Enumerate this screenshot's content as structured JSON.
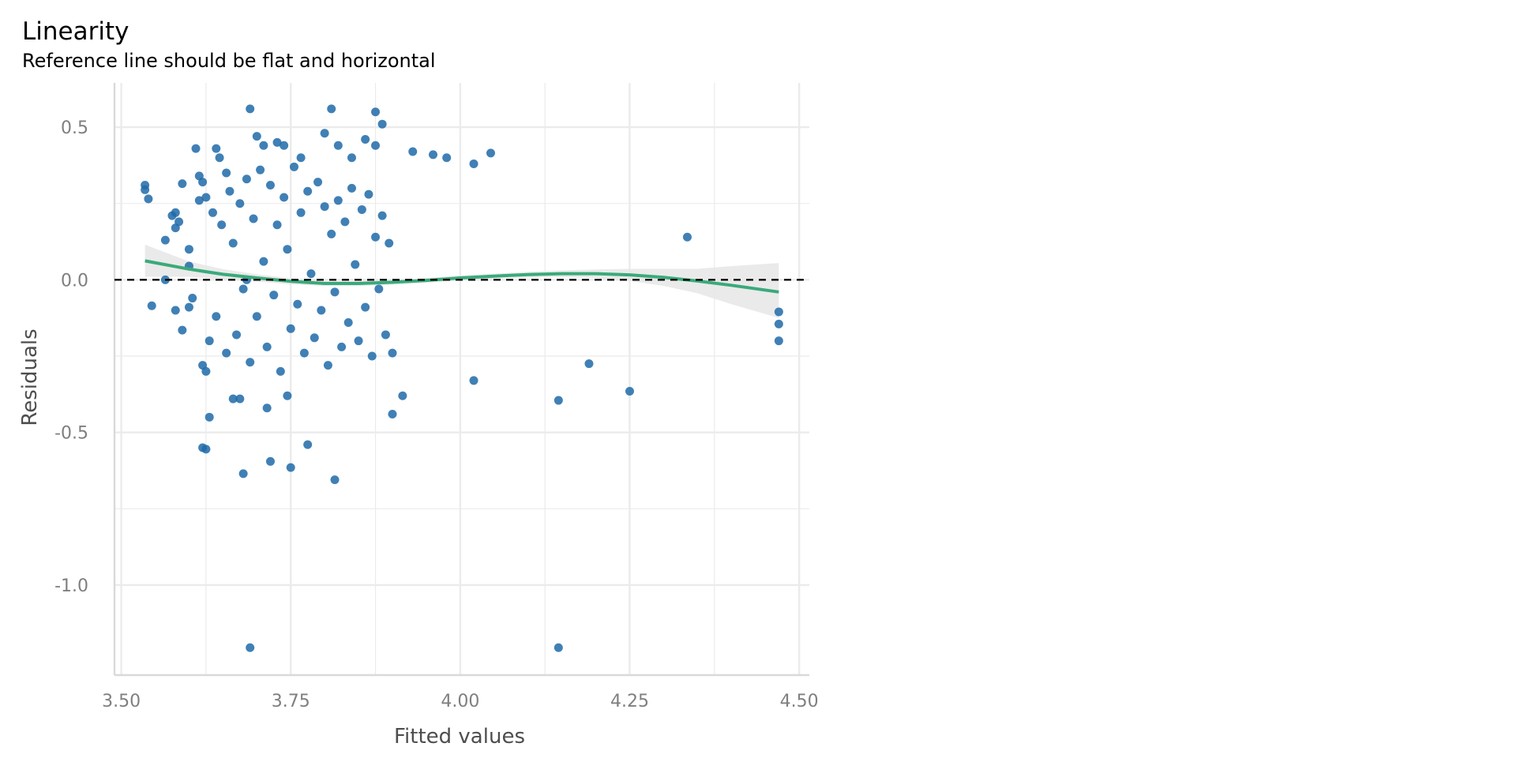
{
  "chart_data": {
    "type": "scatter",
    "title": "Linearity",
    "subtitle": "Reference line should be flat and horizontal",
    "xlabel": "Fitted values",
    "ylabel": "Residuals",
    "xlim": [
      3.49,
      4.515
    ],
    "ylim": [
      -1.295,
      0.645
    ],
    "x_ticks": [
      3.5,
      3.75,
      4.0,
      4.25,
      4.5
    ],
    "x_tick_labels": [
      "3.50",
      "3.75",
      "4.00",
      "4.25",
      "4.50"
    ],
    "y_ticks": [
      -1.0,
      -0.5,
      0.0,
      0.5
    ],
    "y_tick_labels": [
      "-1.0",
      "-0.5",
      "0.0",
      "0.5"
    ],
    "grid": true,
    "reference_line": {
      "y": 0.0,
      "style": "dashed"
    },
    "colors": {
      "points": "#1f6aa8",
      "smooth": "#3aaa7a",
      "band": "#e6e6e6",
      "reference": "#000000",
      "grid": "#ebebeb"
    },
    "series": [
      {
        "type": "scatter",
        "points": [
          [
            3.535,
            0.31
          ],
          [
            3.535,
            0.295
          ],
          [
            3.54,
            0.265
          ],
          [
            3.545,
            -0.085
          ],
          [
            3.565,
            0.13
          ],
          [
            3.565,
            0.0
          ],
          [
            3.575,
            0.21
          ],
          [
            3.58,
            0.22
          ],
          [
            3.58,
            -0.1
          ],
          [
            3.585,
            0.19
          ],
          [
            3.59,
            0.315
          ],
          [
            3.59,
            -0.165
          ],
          [
            3.6,
            0.045
          ],
          [
            3.6,
            -0.09
          ],
          [
            3.61,
            0.43
          ],
          [
            3.615,
            0.34
          ],
          [
            3.62,
            0.32
          ],
          [
            3.62,
            -0.28
          ],
          [
            3.625,
            -0.3
          ],
          [
            3.63,
            -0.45
          ],
          [
            3.62,
            -0.55
          ],
          [
            3.625,
            -0.555
          ],
          [
            3.64,
            0.43
          ],
          [
            3.645,
            0.4
          ],
          [
            3.655,
            0.35
          ],
          [
            3.665,
            -0.39
          ],
          [
            3.675,
            -0.39
          ],
          [
            3.68,
            -0.635
          ],
          [
            3.685,
            1e-09
          ],
          [
            3.69,
            0.56
          ],
          [
            3.7,
            0.47
          ],
          [
            3.71,
            0.44
          ],
          [
            3.715,
            -0.42
          ],
          [
            3.72,
            -0.595
          ],
          [
            3.73,
            0.45
          ],
          [
            3.74,
            0.44
          ],
          [
            3.745,
            -0.38
          ],
          [
            3.75,
            -0.615
          ],
          [
            3.765,
            0.4
          ],
          [
            3.775,
            -0.54
          ],
          [
            3.8,
            0.48
          ],
          [
            3.81,
            0.56
          ],
          [
            3.815,
            -0.655
          ],
          [
            3.82,
            0.44
          ],
          [
            3.84,
            0.4
          ],
          [
            3.86,
            0.46
          ],
          [
            3.875,
            0.55
          ],
          [
            3.885,
            0.51
          ],
          [
            3.875,
            0.44
          ],
          [
            3.9,
            -0.44
          ],
          [
            3.915,
            -0.38
          ],
          [
            3.93,
            0.42
          ],
          [
            3.96,
            0.41
          ],
          [
            3.98,
            0.4
          ],
          [
            4.02,
            0.38
          ],
          [
            4.045,
            0.415
          ],
          [
            4.02,
            -0.33
          ],
          [
            4.145,
            -0.395
          ],
          [
            4.25,
            -0.365
          ],
          [
            4.19,
            -0.275
          ],
          [
            4.335,
            0.14
          ],
          [
            4.47,
            -0.105
          ],
          [
            4.47,
            -0.145
          ],
          [
            4.47,
            -0.2
          ],
          [
            3.69,
            -1.205
          ],
          [
            4.145,
            -1.205
          ],
          [
            3.58,
            0.17
          ],
          [
            3.6,
            0.1
          ],
          [
            3.605,
            -0.06
          ],
          [
            3.615,
            0.26
          ],
          [
            3.625,
            0.27
          ],
          [
            3.63,
            -0.2
          ],
          [
            3.635,
            0.22
          ],
          [
            3.64,
            -0.12
          ],
          [
            3.648,
            0.18
          ],
          [
            3.655,
            -0.24
          ],
          [
            3.66,
            0.29
          ],
          [
            3.665,
            0.12
          ],
          [
            3.67,
            -0.18
          ],
          [
            3.675,
            0.25
          ],
          [
            3.68,
            -0.03
          ],
          [
            3.685,
            0.33
          ],
          [
            3.69,
            -0.27
          ],
          [
            3.695,
            0.2
          ],
          [
            3.7,
            -0.12
          ],
          [
            3.705,
            0.36
          ],
          [
            3.71,
            0.06
          ],
          [
            3.715,
            -0.22
          ],
          [
            3.72,
            0.31
          ],
          [
            3.725,
            -0.05
          ],
          [
            3.73,
            0.18
          ],
          [
            3.735,
            -0.3
          ],
          [
            3.74,
            0.27
          ],
          [
            3.745,
            0.1
          ],
          [
            3.75,
            -0.16
          ],
          [
            3.755,
            0.37
          ],
          [
            3.76,
            -0.08
          ],
          [
            3.765,
            0.22
          ],
          [
            3.77,
            -0.24
          ],
          [
            3.775,
            0.29
          ],
          [
            3.78,
            0.02
          ],
          [
            3.785,
            -0.19
          ],
          [
            3.79,
            0.32
          ],
          [
            3.795,
            -0.1
          ],
          [
            3.8,
            0.24
          ],
          [
            3.805,
            -0.28
          ],
          [
            3.81,
            0.15
          ],
          [
            3.815,
            -0.04
          ],
          [
            3.82,
            0.26
          ],
          [
            3.825,
            -0.22
          ],
          [
            3.83,
            0.19
          ],
          [
            3.835,
            -0.14
          ],
          [
            3.84,
            0.3
          ],
          [
            3.845,
            0.05
          ],
          [
            3.85,
            -0.2
          ],
          [
            3.855,
            0.23
          ],
          [
            3.86,
            -0.09
          ],
          [
            3.865,
            0.28
          ],
          [
            3.87,
            -0.25
          ],
          [
            3.875,
            0.14
          ],
          [
            3.88,
            -0.03
          ],
          [
            3.885,
            0.21
          ],
          [
            3.89,
            -0.18
          ],
          [
            3.895,
            0.12
          ],
          [
            3.9,
            -0.24
          ]
        ]
      },
      {
        "type": "smooth",
        "name": "",
        "points": [
          [
            3.535,
            0.062
          ],
          [
            3.6,
            0.035
          ],
          [
            3.65,
            0.018
          ],
          [
            3.7,
            0.006
          ],
          [
            3.75,
            -0.005
          ],
          [
            3.8,
            -0.012
          ],
          [
            3.85,
            -0.012
          ],
          [
            3.9,
            -0.008
          ],
          [
            3.95,
            -0.002
          ],
          [
            4.0,
            0.006
          ],
          [
            4.05,
            0.012
          ],
          [
            4.1,
            0.017
          ],
          [
            4.15,
            0.02
          ],
          [
            4.2,
            0.02
          ],
          [
            4.25,
            0.016
          ],
          [
            4.3,
            0.008
          ],
          [
            4.35,
            -0.004
          ],
          [
            4.4,
            -0.018
          ],
          [
            4.47,
            -0.04
          ]
        ],
        "band_upper": [
          [
            3.535,
            0.115
          ],
          [
            3.6,
            0.06
          ],
          [
            3.65,
            0.035
          ],
          [
            3.7,
            0.018
          ],
          [
            3.75,
            0.005
          ],
          [
            3.8,
            -0.004
          ],
          [
            3.85,
            -0.004
          ],
          [
            3.9,
            0.0
          ],
          [
            3.95,
            0.006
          ],
          [
            4.0,
            0.014
          ],
          [
            4.05,
            0.02
          ],
          [
            4.1,
            0.026
          ],
          [
            4.15,
            0.031
          ],
          [
            4.2,
            0.034
          ],
          [
            4.25,
            0.036
          ],
          [
            4.3,
            0.036
          ],
          [
            4.35,
            0.036
          ],
          [
            4.4,
            0.045
          ],
          [
            4.47,
            0.055
          ]
        ],
        "band_lower": [
          [
            3.535,
            0.01
          ],
          [
            3.6,
            0.01
          ],
          [
            3.65,
            0.001
          ],
          [
            3.7,
            -0.006
          ],
          [
            3.75,
            -0.015
          ],
          [
            3.8,
            -0.02
          ],
          [
            3.85,
            -0.02
          ],
          [
            3.9,
            -0.016
          ],
          [
            3.95,
            -0.01
          ],
          [
            4.0,
            -0.002
          ],
          [
            4.05,
            0.004
          ],
          [
            4.1,
            0.008
          ],
          [
            4.15,
            0.009
          ],
          [
            4.2,
            0.006
          ],
          [
            4.25,
            -0.004
          ],
          [
            4.3,
            -0.02
          ],
          [
            4.35,
            -0.044
          ],
          [
            4.4,
            -0.08
          ],
          [
            4.47,
            -0.125
          ]
        ]
      }
    ]
  }
}
